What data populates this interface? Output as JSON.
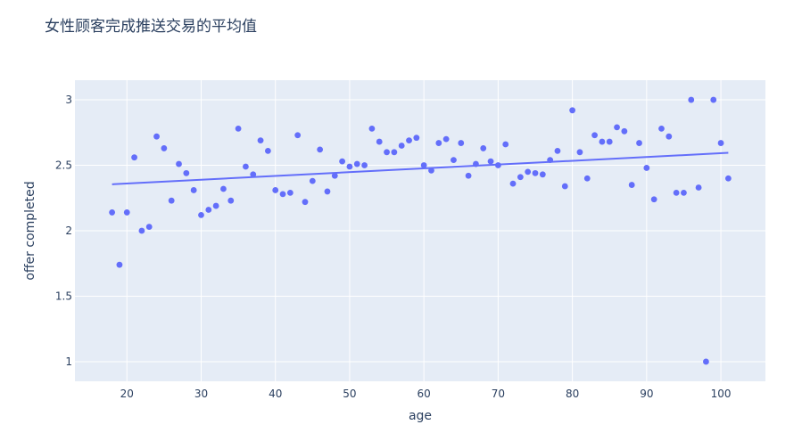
{
  "chart_data": {
    "type": "scatter",
    "title": "女性顾客完成推送交易的平均值",
    "xlabel": "age",
    "ylabel": "offer completed",
    "xlim": [
      13,
      106
    ],
    "ylim": [
      0.85,
      3.15
    ],
    "x_ticks": [
      20,
      30,
      40,
      50,
      60,
      70,
      80,
      90,
      100
    ],
    "y_ticks": [
      1,
      1.5,
      2,
      2.5,
      3
    ],
    "y_tick_labels": [
      "1",
      "1.5",
      "2",
      "2.5",
      "3"
    ],
    "grid": true,
    "colors": {
      "marker": "#636efa",
      "plot_bg": "#e5ecf6",
      "grid": "#ffffff",
      "text": "#2a3f5f"
    },
    "points": [
      [
        18,
        2.14
      ],
      [
        19,
        1.74
      ],
      [
        20,
        2.14
      ],
      [
        21,
        2.56
      ],
      [
        22,
        2.0
      ],
      [
        23,
        2.03
      ],
      [
        24,
        2.72
      ],
      [
        25,
        2.63
      ],
      [
        26,
        2.23
      ],
      [
        27,
        2.51
      ],
      [
        28,
        2.44
      ],
      [
        29,
        2.31
      ],
      [
        30,
        2.12
      ],
      [
        31,
        2.16
      ],
      [
        32,
        2.19
      ],
      [
        33,
        2.32
      ],
      [
        34,
        2.23
      ],
      [
        35,
        2.78
      ],
      [
        36,
        2.49
      ],
      [
        37,
        2.43
      ],
      [
        38,
        2.69
      ],
      [
        39,
        2.61
      ],
      [
        40,
        2.31
      ],
      [
        41,
        2.28
      ],
      [
        42,
        2.29
      ],
      [
        43,
        2.73
      ],
      [
        44,
        2.22
      ],
      [
        45,
        2.38
      ],
      [
        46,
        2.62
      ],
      [
        47,
        2.3
      ],
      [
        48,
        2.42
      ],
      [
        49,
        2.53
      ],
      [
        50,
        2.49
      ],
      [
        51,
        2.51
      ],
      [
        52,
        2.5
      ],
      [
        53,
        2.78
      ],
      [
        54,
        2.68
      ],
      [
        55,
        2.6
      ],
      [
        56,
        2.6
      ],
      [
        57,
        2.65
      ],
      [
        58,
        2.69
      ],
      [
        59,
        2.71
      ],
      [
        60,
        2.5
      ],
      [
        61,
        2.46
      ],
      [
        62,
        2.67
      ],
      [
        63,
        2.7
      ],
      [
        64,
        2.54
      ],
      [
        65,
        2.67
      ],
      [
        66,
        2.42
      ],
      [
        67,
        2.51
      ],
      [
        68,
        2.63
      ],
      [
        69,
        2.53
      ],
      [
        70,
        2.5
      ],
      [
        71,
        2.66
      ],
      [
        72,
        2.36
      ],
      [
        73,
        2.41
      ],
      [
        74,
        2.45
      ],
      [
        75,
        2.44
      ],
      [
        76,
        2.43
      ],
      [
        77,
        2.54
      ],
      [
        78,
        2.61
      ],
      [
        79,
        2.34
      ],
      [
        80,
        2.92
      ],
      [
        81,
        2.6
      ],
      [
        82,
        2.4
      ],
      [
        83,
        2.73
      ],
      [
        84,
        2.68
      ],
      [
        85,
        2.68
      ],
      [
        86,
        2.79
      ],
      [
        87,
        2.76
      ],
      [
        88,
        2.35
      ],
      [
        89,
        2.67
      ],
      [
        90,
        2.48
      ],
      [
        91,
        2.24
      ],
      [
        92,
        2.78
      ],
      [
        93,
        2.72
      ],
      [
        94,
        2.29
      ],
      [
        95,
        2.29
      ],
      [
        96,
        3.0
      ],
      [
        97,
        2.33
      ],
      [
        98,
        1.0
      ],
      [
        99,
        3.0
      ],
      [
        100,
        2.67
      ],
      [
        101,
        2.4
      ]
    ],
    "trendline": {
      "x": [
        18,
        101
      ],
      "y": [
        2.355,
        2.595
      ]
    }
  }
}
